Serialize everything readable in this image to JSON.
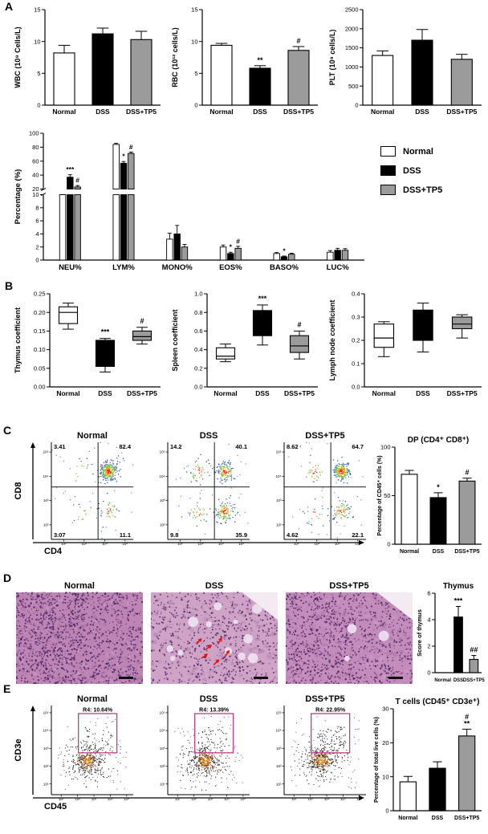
{
  "labels": {
    "a": "A",
    "b": "B",
    "c": "C",
    "d": "D",
    "e": "E"
  },
  "legend": {
    "items": [
      "Normal",
      "DSS",
      "DSS+TP5"
    ]
  },
  "figure": {
    "group_colors": [
      "#ffffff",
      "#000000",
      "#9b9b9b"
    ],
    "gate_color": "#c23a8c",
    "arrow_color": "#e8100c",
    "axis_color": "#000000",
    "hist_nuclei": [
      "#4f2a66",
      "#5f3378",
      "#6f3f86",
      "#3f1f55"
    ],
    "hist_blobs": [
      "#b27fae",
      "#d3a6cb",
      "#9e6b9e"
    ],
    "patch_color": "#ecdff0",
    "edge_color": "#f3eaf2"
  },
  "flow_c_axes": {
    "x": "CD4",
    "y": "CD8"
  },
  "flow_e_axes": {
    "x": "CD45",
    "y": "CD3e"
  },
  "chart_data": [
    {
      "id": "wbc",
      "type": "bar",
      "ml": 40,
      "title": "",
      "ylabel": "WBC (10⁹ Cells/L)",
      "categories": [
        "Normal",
        "DSS",
        "DSS+TP5"
      ],
      "values": [
        8.2,
        11.2,
        10.3
      ],
      "errors": [
        1.2,
        0.9,
        1.3
      ],
      "ann": [
        "",
        "",
        ""
      ],
      "ylim": [
        0,
        15
      ],
      "yticks": [
        "0",
        "5",
        "10",
        "15"
      ]
    },
    {
      "id": "rbc",
      "type": "bar",
      "ml": 40,
      "title": "",
      "ylabel": "RBC (10¹² cells/L)",
      "categories": [
        "Normal",
        "DSS",
        "DSS+TP5"
      ],
      "values": [
        9.4,
        5.8,
        8.6
      ],
      "errors": [
        0.3,
        0.4,
        0.6
      ],
      "ann": [
        "",
        "**",
        "#"
      ],
      "ylim": [
        0,
        15
      ],
      "yticks": [
        "0",
        "5",
        "10",
        "15"
      ]
    },
    {
      "id": "plt",
      "type": "bar",
      "ml": 44,
      "title": "",
      "ylabel": "PLT (10⁹ cells/L)",
      "categories": [
        "Normal",
        "DSS",
        "DSS+TP5"
      ],
      "values": [
        1300,
        1700,
        1200
      ],
      "errors": [
        120,
        280,
        130
      ],
      "ann": [
        "",
        "",
        ""
      ],
      "ylim": [
        0,
        2500
      ],
      "yticks": [
        "0",
        "500",
        "1000",
        "1500",
        "2000",
        "2500"
      ]
    },
    {
      "id": "diff",
      "type": "grouped-bar-broken",
      "ylabel": "Percentage (%)",
      "categories": [
        "NEU%",
        "LYM%",
        "MONO%",
        "EOS%",
        "BASO%",
        "LUC%"
      ],
      "series": [
        {
          "name": "Normal",
          "values": [
            10,
            84,
            3.2,
            2.0,
            1.0,
            1.2
          ],
          "errors": [
            0.6,
            1.5,
            0.9,
            0.3,
            0.15,
            0.25
          ]
        },
        {
          "name": "DSS",
          "values": [
            37,
            57,
            4.0,
            1.0,
            0.5,
            1.5
          ],
          "errors": [
            3.5,
            2.5,
            1.3,
            0.2,
            0.12,
            0.3
          ]
        },
        {
          "name": "DSS+TP5",
          "values": [
            23,
            71,
            2.0,
            1.8,
            0.9,
            1.5
          ],
          "errors": [
            2.0,
            2.0,
            0.4,
            0.3,
            0.15,
            0.25
          ]
        }
      ],
      "upper": {
        "lim": [
          20,
          100
        ],
        "ticks": [
          "20",
          "40",
          "60",
          "80",
          "100"
        ]
      },
      "lower": {
        "lim": [
          0,
          10
        ],
        "ticks": [
          "0",
          "2",
          "4",
          "6",
          "8",
          "10"
        ]
      },
      "annotations": [
        {
          "cat": 0,
          "series": 1,
          "text": "***"
        },
        {
          "cat": 0,
          "series": 2,
          "text": "#"
        },
        {
          "cat": 1,
          "series": 1,
          "text": "*"
        },
        {
          "cat": 1,
          "series": 2,
          "text": "#"
        },
        {
          "cat": 3,
          "series": 1,
          "text": "*"
        },
        {
          "cat": 3,
          "series": 2,
          "text": "#"
        },
        {
          "cat": 4,
          "series": 1,
          "text": "*"
        }
      ]
    },
    {
      "id": "thymus_coef",
      "type": "box",
      "ml": 46,
      "ylabel": "Thymus coefficient",
      "ylim": [
        0,
        0.25
      ],
      "yticks": [
        "0.00",
        "0.05",
        "0.10",
        "0.15",
        "0.20",
        "0.25"
      ],
      "categories": [
        "Normal",
        "DSS",
        "DSS+TP5"
      ],
      "boxes": [
        {
          "lo": 0.155,
          "q1": 0.17,
          "med": 0.2,
          "q3": 0.215,
          "hi": 0.225,
          "ann": ""
        },
        {
          "lo": 0.04,
          "q1": 0.055,
          "med": 0.105,
          "q3": 0.125,
          "hi": 0.13,
          "ann": "***"
        },
        {
          "lo": 0.115,
          "q1": 0.125,
          "med": 0.135,
          "q3": 0.15,
          "hi": 0.16,
          "ann": "#"
        }
      ]
    },
    {
      "id": "spleen_coef",
      "type": "box",
      "ml": 46,
      "ylabel": "Spleen coefficient",
      "ylim": [
        0,
        1.0
      ],
      "yticks": [
        "0.0",
        "0.2",
        "0.4",
        "0.6",
        "0.8",
        "1.0"
      ],
      "categories": [
        "Normal",
        "DSS",
        "DSS+TP5"
      ],
      "boxes": [
        {
          "lo": 0.27,
          "q1": 0.3,
          "med": 0.33,
          "q3": 0.42,
          "hi": 0.46,
          "ann": ""
        },
        {
          "lo": 0.45,
          "q1": 0.55,
          "med": 0.66,
          "q3": 0.82,
          "hi": 0.88,
          "ann": "***"
        },
        {
          "lo": 0.3,
          "q1": 0.37,
          "med": 0.44,
          "q3": 0.55,
          "hi": 0.6,
          "ann": "#"
        }
      ]
    },
    {
      "id": "lymph_coef",
      "type": "box",
      "ml": 46,
      "ylabel": "Lymph node coefficient",
      "ylim": [
        0,
        0.4
      ],
      "yticks": [
        "0.0",
        "0.1",
        "0.2",
        "0.3",
        "0.4"
      ],
      "categories": [
        "Normal",
        "DSS",
        "DSS+TP5"
      ],
      "boxes": [
        {
          "lo": 0.13,
          "q1": 0.17,
          "med": 0.21,
          "q3": 0.27,
          "hi": 0.28,
          "ann": ""
        },
        {
          "lo": 0.15,
          "q1": 0.2,
          "med": 0.3,
          "q3": 0.33,
          "hi": 0.36,
          "ann": ""
        },
        {
          "lo": 0.21,
          "q1": 0.25,
          "med": 0.27,
          "q3": 0.3,
          "hi": 0.31,
          "ann": ""
        }
      ]
    },
    {
      "id": "flow_normal",
      "type": "flow-quadrant",
      "title": "Normal",
      "quadrants": {
        "ul": "3.41",
        "ur": "82.4",
        "ll": "3.07",
        "lr": "11.1"
      },
      "xticks": [
        "10²",
        "10³",
        "10⁴",
        "10⁵"
      ],
      "yticks": [
        "10²",
        "10³",
        "10⁴",
        "10⁵"
      ]
    },
    {
      "id": "flow_dss",
      "type": "flow-quadrant",
      "title": "DSS",
      "quadrants": {
        "ul": "14.2",
        "ur": "40.1",
        "ll": "9.8",
        "lr": "35.9"
      },
      "xticks": [
        "10²",
        "10³",
        "10⁴",
        "10⁵"
      ],
      "yticks": [
        "10²",
        "10³",
        "10⁴",
        "10⁵"
      ]
    },
    {
      "id": "flow_tp5",
      "type": "flow-quadrant",
      "title": "DSS+TP5",
      "quadrants": {
        "ul": "8.62",
        "ur": "64.7",
        "ll": "4.62",
        "lr": "22.1"
      },
      "xticks": [
        "10²",
        "10³",
        "10⁴",
        "10⁵"
      ],
      "yticks": [
        "10²",
        "10³",
        "10⁴",
        "10⁵"
      ]
    },
    {
      "id": "dp_bar",
      "type": "bar",
      "ml": 26,
      "ylfs": 7,
      "xfs": 7,
      "title": "DP (CD4⁺ CD8⁺)",
      "ylabel": "Percentage of CD45⁺ cells (%)",
      "categories": [
        "Normal",
        "DSS",
        "DSS+TP5"
      ],
      "values": [
        72,
        48,
        65
      ],
      "errors": [
        4,
        5,
        3
      ],
      "ann": [
        "",
        "*",
        "#"
      ],
      "ylim": [
        0,
        100
      ],
      "yticks": [
        "0",
        "50",
        "100"
      ]
    },
    {
      "id": "hist_normal",
      "type": "histology",
      "title": "Normal",
      "bg": "#bd84b4",
      "density": 1100,
      "patches": 0,
      "edge": false,
      "extra_dark": 320,
      "arrows": []
    },
    {
      "id": "hist_dss",
      "type": "histology",
      "title": "DSS",
      "bg": "#cfa3c6",
      "density": 720,
      "patches": 12,
      "edge": true,
      "extra_dark": 0,
      "arrows": [
        {
          "x": 0.4,
          "y": 0.5,
          "r": -50
        },
        {
          "x": 0.48,
          "y": 0.57,
          "r": -40
        },
        {
          "x": 0.56,
          "y": 0.49,
          "r": -60
        },
        {
          "x": 0.45,
          "y": 0.67,
          "r": -35
        },
        {
          "x": 0.54,
          "y": 0.73,
          "r": -45
        },
        {
          "x": 0.62,
          "y": 0.63,
          "r": -55
        }
      ]
    },
    {
      "id": "hist_tp5",
      "type": "histology",
      "title": "DSS+TP5",
      "bg": "#c48cba",
      "density": 920,
      "patches": 3,
      "edge": true,
      "extra_dark": 220,
      "arrows": []
    },
    {
      "id": "thymus_score",
      "type": "bar",
      "ml": 26,
      "ylfs": 7.5,
      "xfs": 6,
      "title": "Thymus",
      "ylabel": "Score of thymus",
      "categories": [
        "Normal",
        "DSS",
        "DSS+TP5"
      ],
      "values": [
        0,
        4.2,
        1.0
      ],
      "errors": [
        0,
        0.8,
        0.3
      ],
      "ann": [
        "",
        "***",
        "##"
      ],
      "ylim": [
        0,
        6
      ],
      "yticks": [
        "0",
        "2",
        "4",
        "6"
      ]
    },
    {
      "id": "tcell_normal",
      "type": "flow-gate",
      "title": "Normal",
      "gate_label": "R4: 10.64%",
      "gate_pct": 10.64,
      "xticks": [
        "10¹",
        "10²",
        "10³",
        "10⁴",
        "10⁵"
      ],
      "yticks": [
        "10¹",
        "10²",
        "10³",
        "10⁴",
        "10⁵"
      ]
    },
    {
      "id": "tcell_dss",
      "type": "flow-gate",
      "title": "DSS",
      "gate_label": "R4: 13.39%",
      "gate_pct": 13.39,
      "xticks": [
        "10¹",
        "10²",
        "10³",
        "10⁴",
        "10⁵"
      ],
      "yticks": [
        "10¹",
        "10²",
        "10³",
        "10⁴",
        "10⁵"
      ]
    },
    {
      "id": "tcell_tp5",
      "type": "flow-gate",
      "title": "DSS+TP5",
      "gate_label": "R4: 22.95%",
      "gate_pct": 22.95,
      "xticks": [
        "10¹",
        "10²",
        "10³",
        "10⁴",
        "10⁵"
      ],
      "yticks": [
        "10¹",
        "10²",
        "10³",
        "10⁴",
        "10⁵"
      ]
    },
    {
      "id": "tcell_bar",
      "type": "bar",
      "ml": 28,
      "ylfs": 7,
      "xfs": 7,
      "title": "T cells (CD45⁺ CD3e⁺)",
      "ylabel": "Percentage of total live cells (%)",
      "categories": [
        "Normal",
        "DSS",
        "DSS+TP5"
      ],
      "values": [
        8.5,
        12.5,
        22
      ],
      "errors": [
        1.6,
        1.9,
        2.0
      ],
      "ann": [
        "",
        "",
        [
          "#",
          "**"
        ]
      ],
      "ylim": [
        0,
        30
      ],
      "yticks": [
        "0",
        "10",
        "20",
        "30"
      ]
    }
  ]
}
